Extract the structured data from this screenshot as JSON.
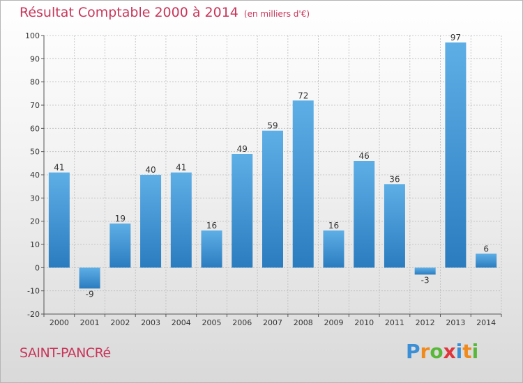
{
  "header": {
    "title": "Résultat Comptable 2000 à 2014",
    "subtitle": "(en milliers d'€)"
  },
  "footer": {
    "commune": "SAINT-PANCRé",
    "logo": {
      "p": "P",
      "r": "r",
      "o": "o",
      "x": "x",
      "i": "i",
      "t": "t",
      "i2": "i"
    }
  },
  "colors": {
    "title": "#c8365a",
    "bar_top": "#5eaee6",
    "bar_bottom": "#2a7cbf",
    "axis": "#555555",
    "grid": "#bbbbbb"
  },
  "chart_data": {
    "type": "bar",
    "title": "Résultat Comptable 2000 à 2014",
    "ylabel": "(en milliers d'€)",
    "xlabel": "",
    "categories": [
      "2000",
      "2001",
      "2002",
      "2003",
      "2004",
      "2005",
      "2006",
      "2007",
      "2008",
      "2009",
      "2010",
      "2011",
      "2012",
      "2013",
      "2014"
    ],
    "values": [
      41,
      -9,
      19,
      40,
      41,
      16,
      49,
      59,
      72,
      16,
      46,
      36,
      -3,
      97,
      6
    ],
    "ylim": [
      -20,
      100
    ],
    "yticks": [
      -20,
      -10,
      0,
      10,
      20,
      30,
      40,
      50,
      60,
      70,
      80,
      90,
      100
    ],
    "grid": true
  }
}
